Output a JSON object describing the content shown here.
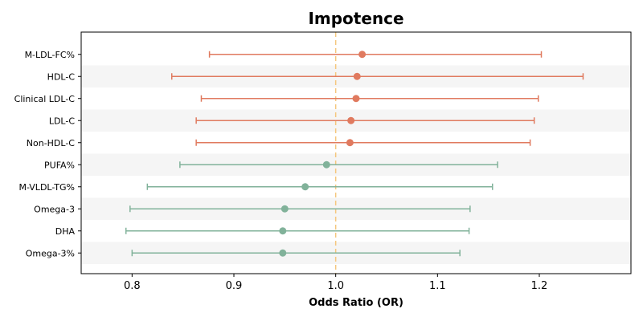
{
  "chart_data": {
    "type": "forest",
    "title": "Impotence",
    "xlabel": "Odds Ratio (OR)",
    "ylabel": "",
    "xlim": [
      0.75,
      1.29
    ],
    "xticks": [
      "0.8",
      "0.9",
      "1.0",
      "1.1",
      "1.2"
    ],
    "reference_line": 1.0,
    "reference_color": "#f5c77e",
    "grid": false,
    "row_band_color": "#f5f5f5",
    "colors": {
      "risk": "#e07a5f",
      "protective": "#81b29a"
    },
    "rows": [
      {
        "label": "M-LDL-FC%",
        "or": 1.026,
        "lo": 0.876,
        "hi": 1.202,
        "group": "risk"
      },
      {
        "label": "HDL-C",
        "or": 1.021,
        "lo": 0.839,
        "hi": 1.243,
        "group": "risk"
      },
      {
        "label": "Clinical LDL-C",
        "or": 1.02,
        "lo": 0.868,
        "hi": 1.199,
        "group": "risk"
      },
      {
        "label": "LDL-C",
        "or": 1.015,
        "lo": 0.863,
        "hi": 1.195,
        "group": "risk"
      },
      {
        "label": "Non-HDL-C",
        "or": 1.014,
        "lo": 0.863,
        "hi": 1.191,
        "group": "risk"
      },
      {
        "label": "PUFA%",
        "or": 0.991,
        "lo": 0.847,
        "hi": 1.159,
        "group": "protective"
      },
      {
        "label": "M-VLDL-TG%",
        "or": 0.97,
        "lo": 0.815,
        "hi": 1.154,
        "group": "protective"
      },
      {
        "label": "Omega-3",
        "or": 0.95,
        "lo": 0.798,
        "hi": 1.132,
        "group": "protective"
      },
      {
        "label": "DHA",
        "or": 0.948,
        "lo": 0.794,
        "hi": 1.131,
        "group": "protective"
      },
      {
        "label": "Omega-3%",
        "or": 0.948,
        "lo": 0.8,
        "hi": 1.122,
        "group": "protective"
      }
    ]
  }
}
